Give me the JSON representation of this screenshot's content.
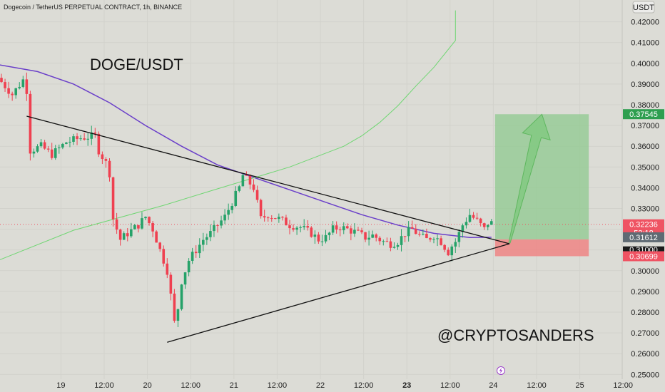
{
  "header": {
    "symbol_title": "Dogecoin / TetherUS PERPETUAL CONTRACT, 1h, BINANCE",
    "currency": "USDT"
  },
  "annotations": {
    "pair_label": "DOGE/USDT",
    "watermark": "@CRYPTOSANDERS"
  },
  "price_badges": {
    "target": "0.37545",
    "current": "0.32236",
    "countdown": "53:18",
    "ma": "0.31612",
    "round": "0.31000",
    "stop": "0.30699"
  },
  "colors": {
    "background": "#dcdcd6",
    "bull": "#26a269",
    "bear": "#ef4050",
    "ma_line": "#6a3fc9",
    "green_curve": "#6fd672",
    "target_zone": "#8fc98f",
    "stop_zone": "#f08080",
    "trendline": "#111111"
  },
  "chart_data": {
    "type": "candlestick",
    "title": "Dogecoin / TetherUS PERPETUAL CONTRACT, 1h, BINANCE",
    "y_axis": {
      "unit": "USDT",
      "range": [
        0.25,
        0.425
      ],
      "ticks": [
        "0.25000",
        "0.26000",
        "0.27000",
        "0.28000",
        "0.29000",
        "0.30000",
        "0.31000",
        "0.32000",
        "0.33000",
        "0.34000",
        "0.35000",
        "0.36000",
        "0.37000",
        "0.38000",
        "0.39000",
        "0.40000",
        "0.41000",
        "0.42000"
      ]
    },
    "x_axis": {
      "ticks": [
        {
          "label": "19",
          "h": 8,
          "bold": false
        },
        {
          "label": "12:00",
          "h": 20,
          "bold": false
        },
        {
          "label": "20",
          "h": 32,
          "bold": false
        },
        {
          "label": "12:00",
          "h": 44,
          "bold": false
        },
        {
          "label": "21",
          "h": 56,
          "bold": false
        },
        {
          "label": "12:00",
          "h": 68,
          "bold": false
        },
        {
          "label": "22",
          "h": 80,
          "bold": false
        },
        {
          "label": "12:00",
          "h": 92,
          "bold": false
        },
        {
          "label": "23",
          "h": 104,
          "bold": true
        },
        {
          "label": "12:00",
          "h": 116,
          "bold": false
        },
        {
          "label": "24",
          "h": 128,
          "bold": false
        },
        {
          "label": "12:00",
          "h": 140,
          "bold": false
        },
        {
          "label": "25",
          "h": 152,
          "bold": false
        },
        {
          "label": "12:00",
          "h": 164,
          "bold": false
        }
      ]
    },
    "close_anchors": [
      [
        0,
        0.391
      ],
      [
        3,
        0.385
      ],
      [
        6,
        0.392
      ],
      [
        7,
        0.387
      ],
      [
        8,
        0.358
      ],
      [
        11,
        0.36
      ],
      [
        14,
        0.356
      ],
      [
        18,
        0.362
      ],
      [
        22,
        0.364
      ],
      [
        26,
        0.365
      ],
      [
        27,
        0.358
      ],
      [
        29,
        0.352
      ],
      [
        30,
        0.347
      ],
      [
        31,
        0.325
      ],
      [
        33,
        0.315
      ],
      [
        35,
        0.318
      ],
      [
        38,
        0.322
      ],
      [
        40,
        0.326
      ],
      [
        42,
        0.32
      ],
      [
        44,
        0.31
      ],
      [
        46,
        0.3
      ],
      [
        47,
        0.288
      ],
      [
        48,
        0.275
      ],
      [
        49,
        0.282
      ],
      [
        50,
        0.295
      ],
      [
        52,
        0.305
      ],
      [
        54,
        0.31
      ],
      [
        56,
        0.315
      ],
      [
        58,
        0.318
      ],
      [
        60,
        0.322
      ],
      [
        62,
        0.326
      ],
      [
        64,
        0.333
      ],
      [
        66,
        0.34
      ],
      [
        67,
        0.346
      ],
      [
        68,
        0.344
      ],
      [
        70,
        0.34
      ],
      [
        72,
        0.325
      ],
      [
        74,
        0.327
      ],
      [
        77,
        0.325
      ],
      [
        80,
        0.322
      ],
      [
        83,
        0.321
      ],
      [
        86,
        0.318
      ],
      [
        88,
        0.315
      ],
      [
        90,
        0.316
      ],
      [
        92,
        0.32
      ],
      [
        94,
        0.321
      ],
      [
        96,
        0.32
      ],
      [
        99,
        0.318
      ],
      [
        101,
        0.316
      ],
      [
        103,
        0.317
      ],
      [
        106,
        0.314
      ],
      [
        108,
        0.313
      ],
      [
        110,
        0.314
      ],
      [
        112,
        0.318
      ],
      [
        114,
        0.32
      ],
      [
        116,
        0.317
      ],
      [
        118,
        0.315
      ],
      [
        120,
        0.317
      ],
      [
        122,
        0.314
      ],
      [
        124,
        0.309
      ],
      [
        125,
        0.312
      ],
      [
        126,
        0.314
      ],
      [
        127,
        0.318
      ],
      [
        128,
        0.322
      ],
      [
        130,
        0.327
      ],
      [
        132,
        0.324
      ],
      [
        134,
        0.32
      ],
      [
        135,
        0.323
      ],
      [
        136,
        0.323
      ]
    ],
    "last_candle_h": 136,
    "moving_average": [
      [
        -3,
        0.4
      ],
      [
        10,
        0.396
      ],
      [
        20,
        0.39
      ],
      [
        30,
        0.381
      ],
      [
        40,
        0.37
      ],
      [
        50,
        0.36
      ],
      [
        60,
        0.351
      ],
      [
        70,
        0.345
      ],
      [
        80,
        0.339
      ],
      [
        90,
        0.333
      ],
      [
        100,
        0.327
      ],
      [
        110,
        0.322
      ],
      [
        120,
        0.318
      ],
      [
        130,
        0.316
      ],
      [
        136,
        0.3161
      ]
    ],
    "green_curve": [
      [
        -3,
        0.3035
      ],
      [
        20,
        0.3195
      ],
      [
        45,
        0.3315
      ],
      [
        60,
        0.3395
      ],
      [
        80,
        0.35
      ],
      [
        95,
        0.36
      ],
      [
        100,
        0.365
      ],
      [
        105,
        0.3715
      ],
      [
        110,
        0.3795
      ],
      [
        115,
        0.389
      ],
      [
        120,
        0.398
      ],
      [
        126,
        0.411
      ],
      [
        126,
        0.4255
      ]
    ],
    "trendlines": [
      {
        "name": "upper",
        "from": [
          7,
          0.3745
        ],
        "to": [
          141,
          0.313
        ]
      },
      {
        "name": "lower",
        "from": [
          46,
          0.2655
        ],
        "to": [
          141,
          0.313
        ]
      }
    ],
    "position": {
      "h_start": 137,
      "h_end": 163,
      "entry": 0.3151,
      "target": 0.37545,
      "stop": 0.30699
    },
    "arrow": {
      "from": [
        141,
        0.3135
      ],
      "to": [
        150,
        0.3754
      ]
    },
    "candle_count": 137
  }
}
